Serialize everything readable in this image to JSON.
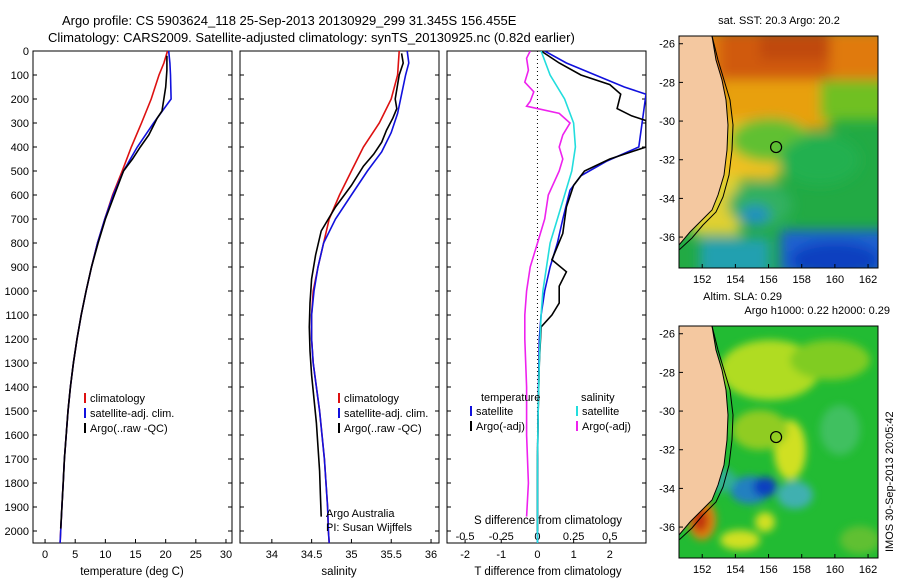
{
  "header": {
    "line1": "Argo profile: CS 5903624_118 25-Sep-2013 20130929_299 31.345S 156.455E",
    "line2": "Climatology: CARS2009. Satellite-adjusted climatology: synTS_20130925.nc (0.82d earlier)"
  },
  "colors": {
    "climatology": "#dd1111",
    "satellite": "#1111dd",
    "argo": "#000000",
    "sal_satellite": "#22dddd",
    "sal_argo": "#ee22ee",
    "land": "#f4c8a0"
  },
  "chart_data": [
    {
      "type": "line",
      "title": "",
      "xlabel": "temperature (deg C)",
      "ylabel": "",
      "xlim": [
        -2,
        31
      ],
      "ylim": [
        2050,
        0
      ],
      "xticks": [
        0,
        5,
        10,
        15,
        20,
        25,
        30
      ],
      "yticks": [
        0,
        100,
        200,
        300,
        400,
        500,
        600,
        700,
        800,
        900,
        1000,
        1100,
        1200,
        1300,
        1400,
        1500,
        1600,
        1700,
        1800,
        1900,
        2000
      ],
      "legend": [
        "climatology",
        "satellite-adj. clim.",
        "Argo(..raw -QC)"
      ],
      "series": [
        {
          "name": "climatology",
          "color_key": "climatology",
          "points": [
            [
              20.3,
              0
            ],
            [
              19.7,
              50
            ],
            [
              18.9,
              100
            ],
            [
              17.6,
              200
            ],
            [
              16.0,
              300
            ],
            [
              14.3,
              400
            ],
            [
              12.8,
              500
            ],
            [
              11.2,
              600
            ],
            [
              9.9,
              700
            ],
            [
              8.7,
              800
            ],
            [
              7.7,
              900
            ],
            [
              6.8,
              1000
            ],
            [
              6.0,
              1100
            ],
            [
              5.3,
              1200
            ],
            [
              4.7,
              1300
            ],
            [
              4.2,
              1400
            ],
            [
              3.8,
              1500
            ],
            [
              3.5,
              1600
            ],
            [
              3.2,
              1700
            ],
            [
              3.0,
              1800
            ],
            [
              2.8,
              1900
            ],
            [
              2.6,
              2000
            ],
            [
              2.5,
              2050
            ]
          ]
        },
        {
          "name": "satellite-adj. clim.",
          "color_key": "satellite",
          "points": [
            [
              20.5,
              0
            ],
            [
              20.7,
              50
            ],
            [
              20.8,
              100
            ],
            [
              20.9,
              200
            ],
            [
              18.0,
              300
            ],
            [
              15.3,
              400
            ],
            [
              13.0,
              500
            ],
            [
              11.3,
              600
            ],
            [
              9.9,
              700
            ],
            [
              8.7,
              800
            ],
            [
              7.7,
              900
            ],
            [
              6.8,
              1000
            ],
            [
              6.0,
              1100
            ],
            [
              5.3,
              1200
            ],
            [
              4.7,
              1300
            ],
            [
              4.2,
              1400
            ],
            [
              3.8,
              1500
            ],
            [
              3.5,
              1600
            ],
            [
              3.2,
              1700
            ],
            [
              3.0,
              1800
            ],
            [
              2.8,
              1900
            ],
            [
              2.6,
              2000
            ],
            [
              2.5,
              2050
            ]
          ]
        },
        {
          "name": "Argo(..raw -QC)",
          "color_key": "argo",
          "points": [
            [
              20.2,
              20
            ],
            [
              20.2,
              80
            ],
            [
              20.0,
              150
            ],
            [
              19.4,
              250
            ],
            [
              18.6,
              280
            ],
            [
              17.2,
              350
            ],
            [
              15.8,
              400
            ],
            [
              14.5,
              450
            ],
            [
              13.0,
              500
            ],
            [
              11.5,
              600
            ],
            [
              10.0,
              700
            ],
            [
              8.8,
              800
            ],
            [
              7.7,
              900
            ],
            [
              6.8,
              1000
            ],
            [
              6.0,
              1100
            ],
            [
              5.3,
              1200
            ],
            [
              4.7,
              1300
            ],
            [
              4.2,
              1400
            ],
            [
              3.8,
              1500
            ],
            [
              3.5,
              1600
            ],
            [
              3.2,
              1700
            ],
            [
              3.0,
              1800
            ],
            [
              2.8,
              1900
            ],
            [
              2.6,
              1990
            ]
          ]
        }
      ]
    },
    {
      "type": "line",
      "title": "",
      "xlabel": "salinity",
      "ylabel": "",
      "xlim": [
        33.6,
        36.1
      ],
      "ylim": [
        2050,
        0
      ],
      "xticks": [
        34,
        34.5,
        35,
        35.5,
        36
      ],
      "legend": [
        "climatology",
        "satellite-adj. clim.",
        "Argo(..raw -QC)"
      ],
      "annotation": [
        "Argo Australia",
        "PI: Susan Wijffels"
      ],
      "series": [
        {
          "name": "climatology",
          "color_key": "climatology",
          "points": [
            [
              35.6,
              0
            ],
            [
              35.58,
              100
            ],
            [
              35.5,
              200
            ],
            [
              35.35,
              300
            ],
            [
              35.15,
              400
            ],
            [
              35.0,
              500
            ],
            [
              34.85,
              600
            ],
            [
              34.72,
              700
            ],
            [
              34.65,
              800
            ],
            [
              34.58,
              900
            ],
            [
              34.52,
              1000
            ],
            [
              34.5,
              1100
            ],
            [
              34.5,
              1200
            ],
            [
              34.52,
              1300
            ],
            [
              34.56,
              1400
            ],
            [
              34.6,
              1500
            ],
            [
              34.63,
              1600
            ],
            [
              34.66,
              1700
            ],
            [
              34.68,
              1800
            ],
            [
              34.7,
              1900
            ],
            [
              34.71,
              2000
            ],
            [
              34.72,
              2050
            ]
          ]
        },
        {
          "name": "satellite-adj. clim.",
          "color_key": "satellite",
          "points": [
            [
              35.7,
              0
            ],
            [
              35.72,
              50
            ],
            [
              35.68,
              100
            ],
            [
              35.63,
              180
            ],
            [
              35.58,
              260
            ],
            [
              35.5,
              340
            ],
            [
              35.38,
              420
            ],
            [
              35.2,
              500
            ],
            [
              35.0,
              600
            ],
            [
              34.8,
              700
            ],
            [
              34.65,
              800
            ],
            [
              34.58,
              900
            ],
            [
              34.53,
              1000
            ],
            [
              34.5,
              1100
            ],
            [
              34.5,
              1200
            ],
            [
              34.52,
              1300
            ],
            [
              34.56,
              1400
            ],
            [
              34.6,
              1500
            ],
            [
              34.63,
              1600
            ],
            [
              34.66,
              1700
            ],
            [
              34.68,
              1800
            ],
            [
              34.7,
              1900
            ],
            [
              34.71,
              2000
            ],
            [
              34.72,
              2050
            ]
          ]
        },
        {
          "name": "Argo(..raw -QC)",
          "color_key": "argo",
          "points": [
            [
              35.63,
              10
            ],
            [
              35.65,
              50
            ],
            [
              35.6,
              100
            ],
            [
              35.58,
              140
            ],
            [
              35.55,
              200
            ],
            [
              35.57,
              240
            ],
            [
              35.52,
              280
            ],
            [
              35.44,
              330
            ],
            [
              35.38,
              380
            ],
            [
              35.28,
              430
            ],
            [
              35.15,
              480
            ],
            [
              35.0,
              560
            ],
            [
              34.8,
              650
            ],
            [
              34.62,
              750
            ],
            [
              34.55,
              850
            ],
            [
              34.5,
              950
            ],
            [
              34.48,
              1050
            ],
            [
              34.47,
              1150
            ],
            [
              34.48,
              1250
            ],
            [
              34.5,
              1350
            ],
            [
              34.53,
              1450
            ],
            [
              34.56,
              1550
            ],
            [
              34.58,
              1650
            ],
            [
              34.6,
              1750
            ],
            [
              34.61,
              1850
            ],
            [
              34.62,
              1940
            ]
          ]
        }
      ]
    },
    {
      "type": "line",
      "title": "",
      "xlabel": "T difference from climatology",
      "xlabel2": "S difference from climatology",
      "xlim": [
        -2.5,
        3
      ],
      "ylim": [
        2050,
        0
      ],
      "xticks": [
        -2,
        -1,
        0,
        1,
        2
      ],
      "xticks_s": [
        -0.5,
        -0.25,
        0,
        0.25,
        0.5
      ],
      "legend_t_title": "temperature",
      "legend_s_title": "salinity",
      "legend_t": [
        "satellite",
        "Argo(-adj)"
      ],
      "legend_s": [
        "satellite",
        "Argo(-adj)"
      ],
      "series": [
        {
          "name": "T satellite",
          "color_key": "satellite",
          "points": [
            [
              0.2,
              0
            ],
            [
              0.8,
              50
            ],
            [
              1.6,
              100
            ],
            [
              2.4,
              150
            ],
            [
              3.0,
              180
            ],
            [
              2.8,
              400
            ],
            [
              1.9,
              460
            ],
            [
              1.2,
              520
            ],
            [
              0.9,
              580
            ],
            [
              0.7,
              700
            ],
            [
              0.55,
              800
            ],
            [
              0.35,
              900
            ],
            [
              0.2,
              1000
            ],
            [
              0.1,
              1100
            ],
            [
              0.05,
              1200
            ],
            [
              0.03,
              1400
            ],
            [
              0.01,
              1600
            ],
            [
              0.0,
              1800
            ],
            [
              0.0,
              2050
            ]
          ]
        },
        {
          "name": "T argo",
          "color_key": "argo",
          "points": [
            [
              0.1,
              0
            ],
            [
              0.6,
              50
            ],
            [
              1.2,
              100
            ],
            [
              2.0,
              140
            ],
            [
              2.3,
              180
            ],
            [
              2.2,
              240
            ],
            [
              2.6,
              270
            ],
            [
              3.0,
              290
            ],
            [
              3.0,
              400
            ],
            [
              2.0,
              450
            ],
            [
              1.3,
              500
            ],
            [
              1.0,
              560
            ],
            [
              0.8,
              650
            ],
            [
              0.7,
              760
            ],
            [
              0.4,
              870
            ],
            [
              0.8,
              920
            ],
            [
              0.6,
              980
            ],
            [
              0.6,
              1050
            ],
            [
              0.4,
              1100
            ],
            [
              0.1,
              1150
            ],
            [
              0.05,
              1300
            ],
            [
              0.02,
              1500
            ],
            [
              0.0,
              1700
            ],
            [
              0.0,
              2000
            ]
          ]
        },
        {
          "name": "S satellite",
          "color_key": "sal_satellite",
          "points": [
            [
              0.1,
              0
            ],
            [
              0.35,
              100
            ],
            [
              0.75,
              200
            ],
            [
              1.0,
              300
            ],
            [
              1.05,
              400
            ],
            [
              0.95,
              500
            ],
            [
              0.75,
              600
            ],
            [
              0.55,
              700
            ],
            [
              0.35,
              800
            ],
            [
              0.25,
              900
            ],
            [
              0.15,
              1000
            ],
            [
              0.1,
              1100
            ],
            [
              0.05,
              1300
            ],
            [
              0.02,
              1500
            ],
            [
              0.0,
              1700
            ],
            [
              0.0,
              2050
            ]
          ]
        },
        {
          "name": "S argo",
          "color_key": "sal_argo",
          "points": [
            [
              -0.2,
              0
            ],
            [
              -0.3,
              30
            ],
            [
              -0.25,
              80
            ],
            [
              -0.35,
              130
            ],
            [
              -0.1,
              170
            ],
            [
              -0.2,
              210
            ],
            [
              -0.3,
              230
            ],
            [
              0.6,
              260
            ],
            [
              0.9,
              300
            ],
            [
              0.7,
              350
            ],
            [
              0.6,
              400
            ],
            [
              0.7,
              450
            ],
            [
              0.6,
              500
            ],
            [
              0.3,
              600
            ],
            [
              0.2,
              700
            ],
            [
              0.0,
              800
            ],
            [
              -0.2,
              900
            ],
            [
              -0.3,
              1000
            ],
            [
              -0.35,
              1100
            ],
            [
              -0.35,
              1200
            ],
            [
              -0.3,
              1400
            ],
            [
              -0.3,
              1600
            ],
            [
              -0.25,
              1800
            ],
            [
              -0.3,
              1940
            ]
          ]
        }
      ]
    }
  ],
  "maps": {
    "sst": {
      "title": "sat. SST: 20.3 Argo: 20.2",
      "lat_ticks": [
        "-26",
        "-28",
        "-30",
        "-32",
        "-34",
        "-36"
      ],
      "lon_ticks": [
        "152",
        "154",
        "156",
        "158",
        "160",
        "162"
      ]
    },
    "sla": {
      "title1": "Altim. SLA: 0.29",
      "title2": "Argo h1000: 0.22 h2000: 0.29",
      "lat_ticks": [
        "-26",
        "-28",
        "-30",
        "-32",
        "-34",
        "-36"
      ],
      "lon_ticks": [
        "152",
        "154",
        "156",
        "158",
        "160",
        "162"
      ]
    },
    "float_position": {
      "lon": 156.455,
      "lat": -31.345
    }
  },
  "credit": "IMOS 30-Sep-2013 20:05:42"
}
